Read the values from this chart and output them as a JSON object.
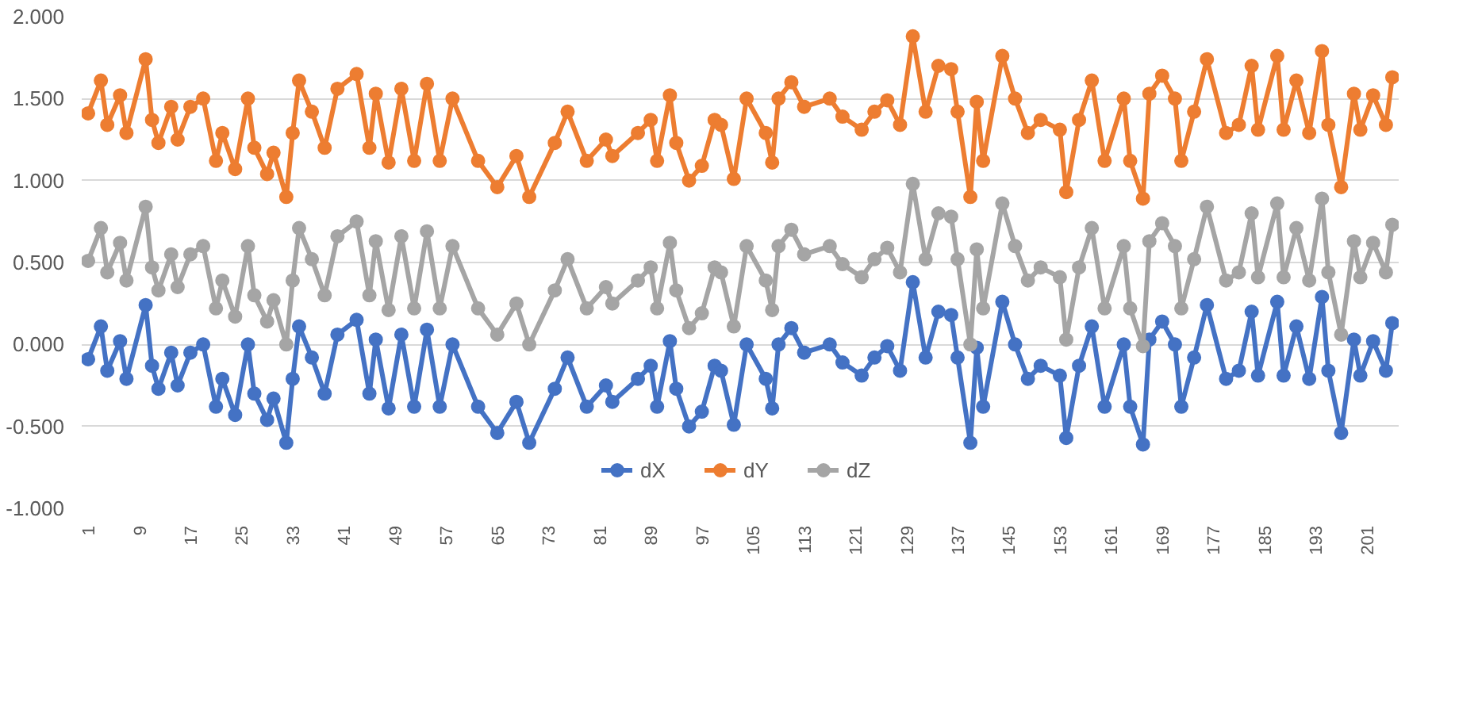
{
  "chart_data": {
    "type": "line",
    "x": [
      1,
      3,
      4,
      6,
      7,
      10,
      11,
      12,
      14,
      15,
      17,
      19,
      21,
      22,
      24,
      26,
      27,
      29,
      30,
      32,
      33,
      34,
      36,
      38,
      40,
      43,
      45,
      46,
      48,
      50,
      52,
      54,
      56,
      58,
      62,
      65,
      68,
      70,
      74,
      76,
      79,
      82,
      83,
      87,
      89,
      90,
      92,
      93,
      95,
      97,
      99,
      100,
      102,
      104,
      107,
      108,
      109,
      111,
      113,
      117,
      119,
      122,
      124,
      126,
      128,
      130,
      132,
      134,
      136,
      137,
      139,
      140,
      141,
      144,
      146,
      148,
      150,
      153,
      154,
      156,
      158,
      160,
      163,
      164,
      166,
      167,
      169,
      171,
      172,
      174,
      176,
      179,
      181,
      183,
      184,
      187,
      188,
      190,
      192,
      194,
      195,
      197,
      199,
      200,
      202,
      204,
      205
    ],
    "series": [
      {
        "name": "dX",
        "color": "#4472c4",
        "values": [
          -0.09,
          0.11,
          -0.16,
          0.02,
          -0.21,
          0.24,
          -0.13,
          -0.27,
          -0.05,
          -0.25,
          -0.05,
          0.0,
          -0.38,
          -0.21,
          -0.43,
          0.0,
          -0.3,
          -0.46,
          -0.33,
          -0.6,
          -0.21,
          0.11,
          -0.08,
          -0.3,
          0.06,
          0.15,
          -0.3,
          0.03,
          -0.39,
          0.06,
          -0.38,
          0.09,
          -0.38,
          0.0,
          -0.38,
          -0.54,
          -0.35,
          -0.6,
          -0.27,
          -0.08,
          -0.38,
          -0.25,
          -0.35,
          -0.21,
          -0.13,
          -0.38,
          0.02,
          -0.27,
          -0.5,
          -0.41,
          -0.13,
          -0.16,
          -0.49,
          0.0,
          -0.21,
          -0.39,
          0.0,
          0.1,
          -0.05,
          0.0,
          -0.11,
          -0.19,
          -0.08,
          -0.01,
          -0.16,
          0.38,
          -0.08,
          0.2,
          0.18,
          -0.08,
          -0.6,
          -0.02,
          -0.38,
          0.26,
          0.0,
          -0.21,
          -0.13,
          -0.19,
          -0.57,
          -0.13,
          0.11,
          -0.38,
          0.0,
          -0.38,
          -0.61,
          0.03,
          0.14,
          0.0,
          -0.38,
          -0.08,
          0.24,
          -0.21,
          -0.16,
          0.2,
          -0.19,
          0.26,
          -0.19,
          0.11,
          -0.21,
          0.29,
          -0.16,
          -0.54,
          0.03,
          -0.19,
          0.02,
          -0.16,
          0.13
        ]
      },
      {
        "name": "dY",
        "color": "#ed7d31",
        "values": [
          1.41,
          1.61,
          1.34,
          1.52,
          1.29,
          1.74,
          1.37,
          1.23,
          1.45,
          1.25,
          1.45,
          1.5,
          1.12,
          1.29,
          1.07,
          1.5,
          1.2,
          1.04,
          1.17,
          0.9,
          1.29,
          1.61,
          1.42,
          1.2,
          1.56,
          1.65,
          1.2,
          1.53,
          1.11,
          1.56,
          1.12,
          1.59,
          1.12,
          1.5,
          1.12,
          0.96,
          1.15,
          0.9,
          1.23,
          1.42,
          1.12,
          1.25,
          1.15,
          1.29,
          1.37,
          1.12,
          1.52,
          1.23,
          1.0,
          1.09,
          1.37,
          1.34,
          1.01,
          1.5,
          1.29,
          1.11,
          1.5,
          1.6,
          1.45,
          1.5,
          1.39,
          1.31,
          1.42,
          1.49,
          1.34,
          1.88,
          1.42,
          1.7,
          1.68,
          1.42,
          0.9,
          1.48,
          1.12,
          1.76,
          1.5,
          1.29,
          1.37,
          1.31,
          0.93,
          1.37,
          1.61,
          1.12,
          1.5,
          1.12,
          0.89,
          1.53,
          1.64,
          1.5,
          1.12,
          1.42,
          1.74,
          1.29,
          1.34,
          1.7,
          1.31,
          1.76,
          1.31,
          1.61,
          1.29,
          1.79,
          1.34,
          0.96,
          1.53,
          1.31,
          1.52,
          1.34,
          1.63
        ]
      },
      {
        "name": "dZ",
        "color": "#a5a5a5",
        "values": [
          0.51,
          0.71,
          0.44,
          0.62,
          0.39,
          0.84,
          0.47,
          0.33,
          0.55,
          0.35,
          0.55,
          0.6,
          0.22,
          0.39,
          0.17,
          0.6,
          0.3,
          0.14,
          0.27,
          0.0,
          0.39,
          0.71,
          0.52,
          0.3,
          0.66,
          0.75,
          0.3,
          0.63,
          0.21,
          0.66,
          0.22,
          0.69,
          0.22,
          0.6,
          0.22,
          0.06,
          0.25,
          0.0,
          0.33,
          0.52,
          0.22,
          0.35,
          0.25,
          0.39,
          0.47,
          0.22,
          0.62,
          0.33,
          0.1,
          0.19,
          0.47,
          0.44,
          0.11,
          0.6,
          0.39,
          0.21,
          0.6,
          0.7,
          0.55,
          0.6,
          0.49,
          0.41,
          0.52,
          0.59,
          0.44,
          0.98,
          0.52,
          0.8,
          0.78,
          0.52,
          0.0,
          0.58,
          0.22,
          0.86,
          0.6,
          0.39,
          0.47,
          0.41,
          0.03,
          0.47,
          0.71,
          0.22,
          0.6,
          0.22,
          -0.01,
          0.63,
          0.74,
          0.6,
          0.22,
          0.52,
          0.84,
          0.39,
          0.44,
          0.8,
          0.41,
          0.86,
          0.41,
          0.71,
          0.39,
          0.89,
          0.44,
          0.06,
          0.63,
          0.41,
          0.62,
          0.44,
          0.73
        ]
      }
    ],
    "xlim": [
      0,
      206
    ],
    "xticks": [
      1,
      9,
      17,
      25,
      33,
      41,
      49,
      57,
      65,
      73,
      81,
      89,
      97,
      105,
      113,
      121,
      129,
      137,
      145,
      153,
      161,
      169,
      177,
      185,
      193,
      201
    ],
    "ylim": [
      -1,
      2
    ],
    "yticks": [
      {
        "value": -1,
        "label": "-1.000"
      },
      {
        "value": -0.5,
        "label": "-0.500"
      },
      {
        "value": 0,
        "label": "0.000"
      },
      {
        "value": 0.5,
        "label": "0.500"
      },
      {
        "value": 1,
        "label": "1.000"
      },
      {
        "value": 1.5,
        "label": "1.500"
      },
      {
        "value": 2,
        "label": "2.000"
      }
    ],
    "grid": "y",
    "legend": "bottom",
    "marker": "circle",
    "line_style": "solid"
  }
}
